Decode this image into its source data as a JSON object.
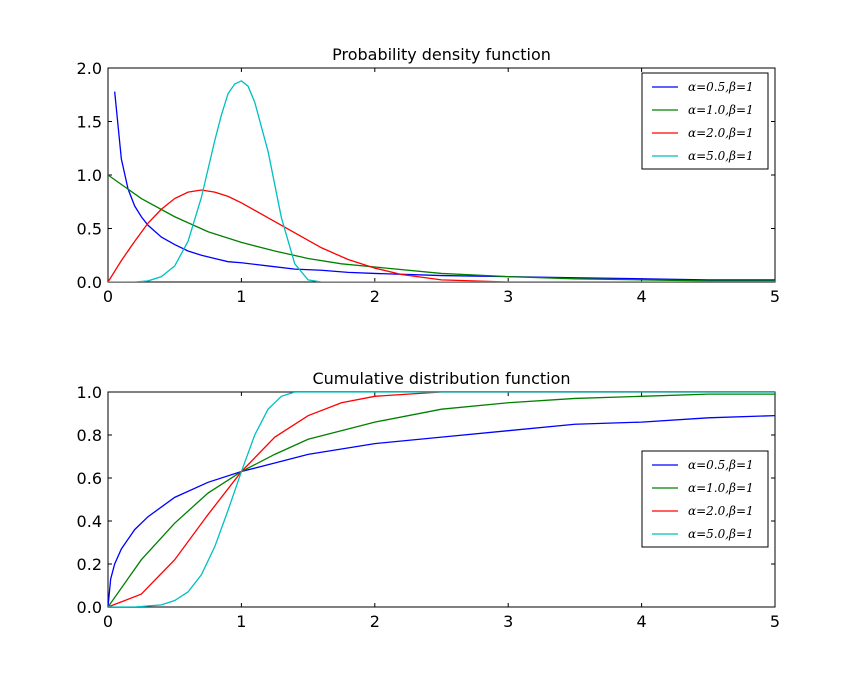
{
  "chart_data": [
    {
      "type": "line",
      "title": "Probability density function",
      "xlabel": "",
      "ylabel": "",
      "xlim": [
        0,
        5
      ],
      "ylim": [
        0,
        2.0
      ],
      "xticks": [
        "0",
        "1",
        "2",
        "3",
        "4",
        "5"
      ],
      "yticks": [
        "0.0",
        "0.5",
        "1.0",
        "1.5",
        "2.0"
      ],
      "grid": false,
      "legend_position": "top-right",
      "series": [
        {
          "name": "α=0.5,β=1",
          "color": "#0000ff",
          "x": [
            0.05,
            0.1,
            0.15,
            0.2,
            0.25,
            0.3,
            0.4,
            0.5,
            0.6,
            0.7,
            0.8,
            0.9,
            1.0,
            1.2,
            1.4,
            1.6,
            1.8,
            2.0,
            2.5,
            3.0,
            3.5,
            4.0,
            4.5,
            5.0
          ],
          "y": [
            1.78,
            1.15,
            0.87,
            0.71,
            0.61,
            0.53,
            0.42,
            0.35,
            0.29,
            0.25,
            0.22,
            0.19,
            0.18,
            0.15,
            0.12,
            0.11,
            0.09,
            0.08,
            0.06,
            0.05,
            0.04,
            0.03,
            0.02,
            0.02
          ]
        },
        {
          "name": "α=1.0,β=1",
          "color": "#008000",
          "x": [
            0,
            0.25,
            0.5,
            0.75,
            1.0,
            1.25,
            1.5,
            1.75,
            2.0,
            2.5,
            3.0,
            3.5,
            4.0,
            4.5,
            5.0
          ],
          "y": [
            1.0,
            0.78,
            0.61,
            0.47,
            0.37,
            0.29,
            0.22,
            0.17,
            0.14,
            0.08,
            0.05,
            0.03,
            0.02,
            0.01,
            0.01
          ]
        },
        {
          "name": "α=2.0,β=1",
          "color": "#ff0000",
          "x": [
            0,
            0.1,
            0.2,
            0.3,
            0.4,
            0.5,
            0.6,
            0.7,
            0.8,
            0.9,
            1.0,
            1.2,
            1.4,
            1.6,
            1.8,
            2.0,
            2.2,
            2.5,
            3.0,
            3.5,
            4.0,
            5.0
          ],
          "y": [
            0,
            0.2,
            0.38,
            0.55,
            0.68,
            0.78,
            0.84,
            0.86,
            0.84,
            0.8,
            0.74,
            0.6,
            0.46,
            0.32,
            0.21,
            0.13,
            0.07,
            0.02,
            0.0,
            0.0,
            0.0,
            0.0
          ]
        },
        {
          "name": "α=5.0,β=1",
          "color": "#00bfbf",
          "x": [
            0,
            0.2,
            0.3,
            0.4,
            0.5,
            0.6,
            0.7,
            0.8,
            0.85,
            0.9,
            0.95,
            1.0,
            1.05,
            1.1,
            1.2,
            1.3,
            1.4,
            1.5,
            1.6,
            2.0,
            3.0,
            4.0,
            5.0
          ],
          "y": [
            0,
            0.0,
            0.01,
            0.05,
            0.15,
            0.38,
            0.79,
            1.32,
            1.56,
            1.76,
            1.85,
            1.88,
            1.83,
            1.68,
            1.22,
            0.6,
            0.17,
            0.02,
            0.0,
            0.0,
            0.0,
            0.0,
            0.0
          ]
        }
      ]
    },
    {
      "type": "line",
      "title": "Cumulative distribution function",
      "xlabel": "",
      "ylabel": "",
      "xlim": [
        0,
        5
      ],
      "ylim": [
        0,
        1.0
      ],
      "xticks": [
        "0",
        "1",
        "2",
        "3",
        "4",
        "5"
      ],
      "yticks": [
        "0.0",
        "0.2",
        "0.4",
        "0.6",
        "0.8",
        "1.0"
      ],
      "grid": false,
      "legend_position": "center-right",
      "series": [
        {
          "name": "α=0.5,β=1",
          "color": "#0000ff",
          "x": [
            0,
            0.02,
            0.05,
            0.1,
            0.2,
            0.3,
            0.5,
            0.75,
            1.0,
            1.25,
            1.5,
            2.0,
            2.5,
            3.0,
            3.5,
            4.0,
            4.5,
            5.0
          ],
          "y": [
            0,
            0.13,
            0.2,
            0.27,
            0.36,
            0.42,
            0.51,
            0.58,
            0.63,
            0.67,
            0.71,
            0.76,
            0.79,
            0.82,
            0.85,
            0.86,
            0.88,
            0.89
          ]
        },
        {
          "name": "α=1.0,β=1",
          "color": "#008000",
          "x": [
            0,
            0.25,
            0.5,
            0.75,
            1.0,
            1.25,
            1.5,
            2.0,
            2.5,
            3.0,
            3.5,
            4.0,
            4.5,
            5.0
          ],
          "y": [
            0,
            0.22,
            0.39,
            0.53,
            0.63,
            0.71,
            0.78,
            0.86,
            0.92,
            0.95,
            0.97,
            0.98,
            0.99,
            0.99
          ]
        },
        {
          "name": "α=2.0,β=1",
          "color": "#ff0000",
          "x": [
            0,
            0.25,
            0.5,
            0.75,
            1.0,
            1.25,
            1.5,
            1.75,
            2.0,
            2.5,
            3.0,
            4.0,
            5.0
          ],
          "y": [
            0,
            0.06,
            0.22,
            0.43,
            0.63,
            0.79,
            0.89,
            0.95,
            0.98,
            1.0,
            1.0,
            1.0,
            1.0
          ]
        },
        {
          "name": "α=5.0,β=1",
          "color": "#00bfbf",
          "x": [
            0,
            0.2,
            0.4,
            0.5,
            0.6,
            0.7,
            0.8,
            0.9,
            1.0,
            1.1,
            1.2,
            1.3,
            1.4,
            1.5,
            1.75,
            2.0,
            3.0,
            5.0
          ],
          "y": [
            0,
            0.0,
            0.01,
            0.03,
            0.07,
            0.15,
            0.28,
            0.45,
            0.63,
            0.8,
            0.92,
            0.98,
            1.0,
            1.0,
            1.0,
            1.0,
            1.0,
            1.0
          ]
        }
      ]
    }
  ]
}
